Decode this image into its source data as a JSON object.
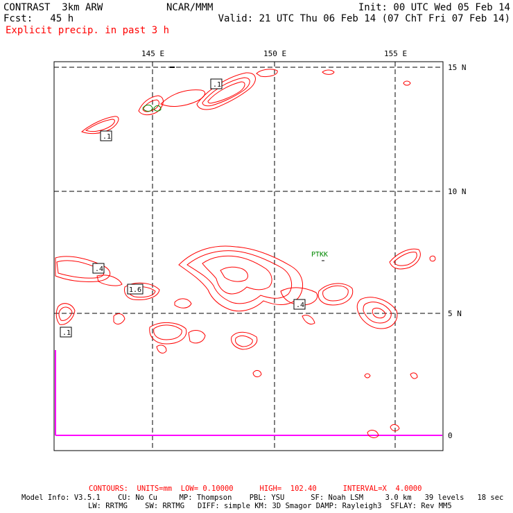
{
  "header": {
    "left1": "CONTRAST  3km ARW",
    "left2": "Fcst:   45 h",
    "center": "NCAR/MMM",
    "right1": "Init: 00 UTC Wed 05 Feb 14",
    "right2": "Valid: 21 UTC Thu 06 Feb 14 (07 ChT Fri 07 Feb 14)",
    "field": "Explicit precip. in past 3 h"
  },
  "map": {
    "lon_labels": [
      "145 E",
      "150 E",
      "155 E"
    ],
    "lat_labels": [
      "15 N",
      "10 N",
      "5 N",
      "0"
    ],
    "station": "PTKK",
    "contour_labels": [
      ".1",
      ".1",
      ".4",
      "1.6",
      ".4",
      ".1"
    ],
    "contour_color": "#ff0000",
    "coast_color": "#ff00ff",
    "station_color": "#008800"
  },
  "footer": {
    "contours": "CONTOURS:  UNITS=mm  LOW= 0.10000      HIGH=  102.40      INTERVAL=X  4.0000",
    "model1": "Model Info: V3.5.1    CU: No Cu     MP: Thompson    PBL: YSU      SF: Noah LSM     3.0 km   39 levels   18 sec",
    "model2": "LW: RRTMG    SW: RRTMG   DIFF: simple KM: 3D Smagor DAMP: Rayleigh3  SFLAY: Rev MM5"
  }
}
